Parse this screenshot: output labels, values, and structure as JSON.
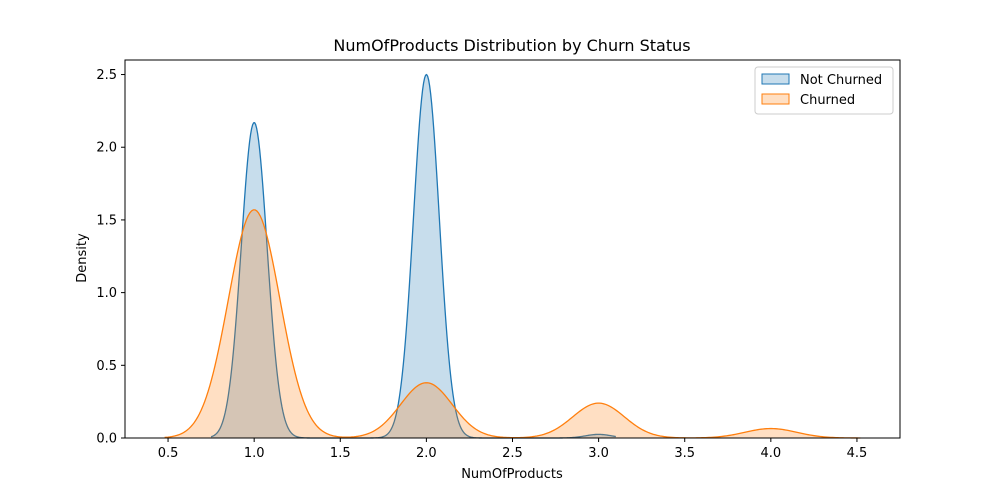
{
  "chart_data": {
    "type": "area",
    "title": "NumOfProducts Distribution by Churn Status",
    "xlabel": "NumOfProducts",
    "ylabel": "Density",
    "xlim": [
      0.25,
      4.75
    ],
    "ylim": [
      0,
      2.6
    ],
    "xticks": [
      0.5,
      1.0,
      1.5,
      2.0,
      2.5,
      3.0,
      3.5,
      4.0,
      4.5
    ],
    "yticks": [
      0.0,
      0.5,
      1.0,
      1.5,
      2.0,
      2.5
    ],
    "legend_position": "upper right",
    "grid": false,
    "series": [
      {
        "name": "Not Churned",
        "color": "#1f77b4",
        "fill": "#c6dbef",
        "domain": [
          0.75,
          3.1
        ],
        "components": [
          {
            "center": 1.0,
            "peak": 2.17,
            "sigma": 0.075
          },
          {
            "center": 2.0,
            "peak": 2.5,
            "sigma": 0.075
          },
          {
            "center": 3.0,
            "peak": 0.025,
            "sigma": 0.075
          }
        ]
      },
      {
        "name": "Churned",
        "color": "#ff7f0e",
        "fill": "#fdd7b5",
        "domain": [
          0.48,
          4.52
        ],
        "components": [
          {
            "center": 1.0,
            "peak": 1.57,
            "sigma": 0.15
          },
          {
            "center": 2.0,
            "peak": 0.38,
            "sigma": 0.15
          },
          {
            "center": 3.0,
            "peak": 0.24,
            "sigma": 0.15
          },
          {
            "center": 4.0,
            "peak": 0.065,
            "sigma": 0.15
          }
        ]
      }
    ]
  }
}
